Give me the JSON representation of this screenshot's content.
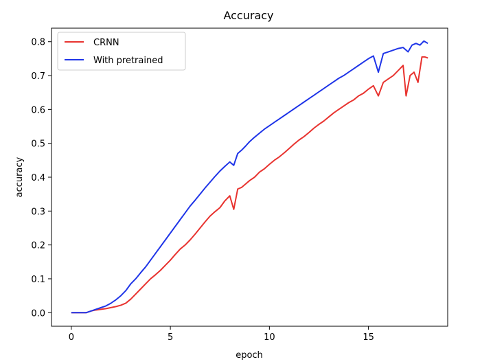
{
  "chart_data": {
    "type": "line",
    "title": "Accuracy",
    "xlabel": "epoch",
    "ylabel": "accuracy",
    "xlim": [
      -1,
      19
    ],
    "ylim": [
      -0.04,
      0.84
    ],
    "xticks": [
      0,
      5,
      10,
      15
    ],
    "xtick_labels": [
      "0",
      "5",
      "10",
      "15"
    ],
    "yticks": [
      0.0,
      0.1,
      0.2,
      0.3,
      0.4,
      0.5,
      0.6,
      0.7,
      0.8
    ],
    "ytick_labels": [
      "0.0",
      "0.1",
      "0.2",
      "0.3",
      "0.4",
      "0.5",
      "0.6",
      "0.7",
      "0.8"
    ],
    "grid": false,
    "legend_position": "top-left",
    "series": [
      {
        "name": "CRNN",
        "color": "#e8332f",
        "points": [
          [
            0,
            0.0
          ],
          [
            0.25,
            0.0
          ],
          [
            0.5,
            0.0
          ],
          [
            0.75,
            0.0
          ],
          [
            1.0,
            0.005
          ],
          [
            1.25,
            0.008
          ],
          [
            1.5,
            0.01
          ],
          [
            1.75,
            0.012
          ],
          [
            2.0,
            0.015
          ],
          [
            2.25,
            0.018
          ],
          [
            2.5,
            0.022
          ],
          [
            2.75,
            0.028
          ],
          [
            3.0,
            0.04
          ],
          [
            3.25,
            0.055
          ],
          [
            3.5,
            0.07
          ],
          [
            3.75,
            0.085
          ],
          [
            4.0,
            0.1
          ],
          [
            4.25,
            0.112
          ],
          [
            4.5,
            0.125
          ],
          [
            4.75,
            0.14
          ],
          [
            5.0,
            0.155
          ],
          [
            5.25,
            0.172
          ],
          [
            5.5,
            0.188
          ],
          [
            5.75,
            0.2
          ],
          [
            6.0,
            0.215
          ],
          [
            6.25,
            0.232
          ],
          [
            6.5,
            0.25
          ],
          [
            6.75,
            0.268
          ],
          [
            7.0,
            0.285
          ],
          [
            7.25,
            0.298
          ],
          [
            7.5,
            0.31
          ],
          [
            7.75,
            0.33
          ],
          [
            8.0,
            0.345
          ],
          [
            8.2,
            0.305
          ],
          [
            8.4,
            0.365
          ],
          [
            8.6,
            0.37
          ],
          [
            8.8,
            0.38
          ],
          [
            9.0,
            0.39
          ],
          [
            9.25,
            0.4
          ],
          [
            9.5,
            0.415
          ],
          [
            9.75,
            0.425
          ],
          [
            10.0,
            0.438
          ],
          [
            10.25,
            0.45
          ],
          [
            10.5,
            0.46
          ],
          [
            10.75,
            0.472
          ],
          [
            11.0,
            0.485
          ],
          [
            11.25,
            0.498
          ],
          [
            11.5,
            0.51
          ],
          [
            11.75,
            0.52
          ],
          [
            12.0,
            0.532
          ],
          [
            12.25,
            0.545
          ],
          [
            12.5,
            0.556
          ],
          [
            12.75,
            0.566
          ],
          [
            13.0,
            0.578
          ],
          [
            13.25,
            0.59
          ],
          [
            13.5,
            0.6
          ],
          [
            13.75,
            0.61
          ],
          [
            14.0,
            0.62
          ],
          [
            14.25,
            0.628
          ],
          [
            14.5,
            0.64
          ],
          [
            14.75,
            0.648
          ],
          [
            15.0,
            0.66
          ],
          [
            15.25,
            0.67
          ],
          [
            15.5,
            0.64
          ],
          [
            15.75,
            0.68
          ],
          [
            16.0,
            0.69
          ],
          [
            16.25,
            0.7
          ],
          [
            16.5,
            0.715
          ],
          [
            16.75,
            0.73
          ],
          [
            16.9,
            0.64
          ],
          [
            17.1,
            0.7
          ],
          [
            17.3,
            0.71
          ],
          [
            17.5,
            0.68
          ],
          [
            17.7,
            0.755
          ],
          [
            17.85,
            0.755
          ],
          [
            18.0,
            0.752
          ]
        ]
      },
      {
        "name": "With pretrained",
        "color": "#1f35e8",
        "points": [
          [
            0,
            0.0
          ],
          [
            0.25,
            0.0
          ],
          [
            0.5,
            0.0
          ],
          [
            0.75,
            0.0
          ],
          [
            1.0,
            0.005
          ],
          [
            1.25,
            0.01
          ],
          [
            1.5,
            0.015
          ],
          [
            1.75,
            0.02
          ],
          [
            2.0,
            0.028
          ],
          [
            2.25,
            0.038
          ],
          [
            2.5,
            0.05
          ],
          [
            2.75,
            0.065
          ],
          [
            3.0,
            0.085
          ],
          [
            3.25,
            0.1
          ],
          [
            3.5,
            0.118
          ],
          [
            3.75,
            0.135
          ],
          [
            4.0,
            0.155
          ],
          [
            4.25,
            0.175
          ],
          [
            4.5,
            0.195
          ],
          [
            4.75,
            0.215
          ],
          [
            5.0,
            0.235
          ],
          [
            5.25,
            0.255
          ],
          [
            5.5,
            0.275
          ],
          [
            5.75,
            0.295
          ],
          [
            6.0,
            0.315
          ],
          [
            6.25,
            0.332
          ],
          [
            6.5,
            0.35
          ],
          [
            6.75,
            0.368
          ],
          [
            7.0,
            0.385
          ],
          [
            7.25,
            0.402
          ],
          [
            7.5,
            0.418
          ],
          [
            7.75,
            0.432
          ],
          [
            8.0,
            0.445
          ],
          [
            8.2,
            0.435
          ],
          [
            8.4,
            0.47
          ],
          [
            8.6,
            0.48
          ],
          [
            8.8,
            0.492
          ],
          [
            9.0,
            0.505
          ],
          [
            9.25,
            0.518
          ],
          [
            9.5,
            0.53
          ],
          [
            9.75,
            0.542
          ],
          [
            10.0,
            0.552
          ],
          [
            10.25,
            0.562
          ],
          [
            10.5,
            0.572
          ],
          [
            10.75,
            0.582
          ],
          [
            11.0,
            0.592
          ],
          [
            11.25,
            0.602
          ],
          [
            11.5,
            0.612
          ],
          [
            11.75,
            0.622
          ],
          [
            12.0,
            0.632
          ],
          [
            12.25,
            0.642
          ],
          [
            12.5,
            0.652
          ],
          [
            12.75,
            0.662
          ],
          [
            13.0,
            0.672
          ],
          [
            13.25,
            0.682
          ],
          [
            13.5,
            0.692
          ],
          [
            13.75,
            0.7
          ],
          [
            14.0,
            0.71
          ],
          [
            14.25,
            0.72
          ],
          [
            14.5,
            0.73
          ],
          [
            14.75,
            0.74
          ],
          [
            15.0,
            0.75
          ],
          [
            15.25,
            0.758
          ],
          [
            15.5,
            0.71
          ],
          [
            15.75,
            0.765
          ],
          [
            16.0,
            0.77
          ],
          [
            16.25,
            0.775
          ],
          [
            16.5,
            0.78
          ],
          [
            16.75,
            0.783
          ],
          [
            17.0,
            0.77
          ],
          [
            17.2,
            0.79
          ],
          [
            17.4,
            0.795
          ],
          [
            17.6,
            0.79
          ],
          [
            17.8,
            0.802
          ],
          [
            18.0,
            0.795
          ]
        ]
      }
    ]
  }
}
